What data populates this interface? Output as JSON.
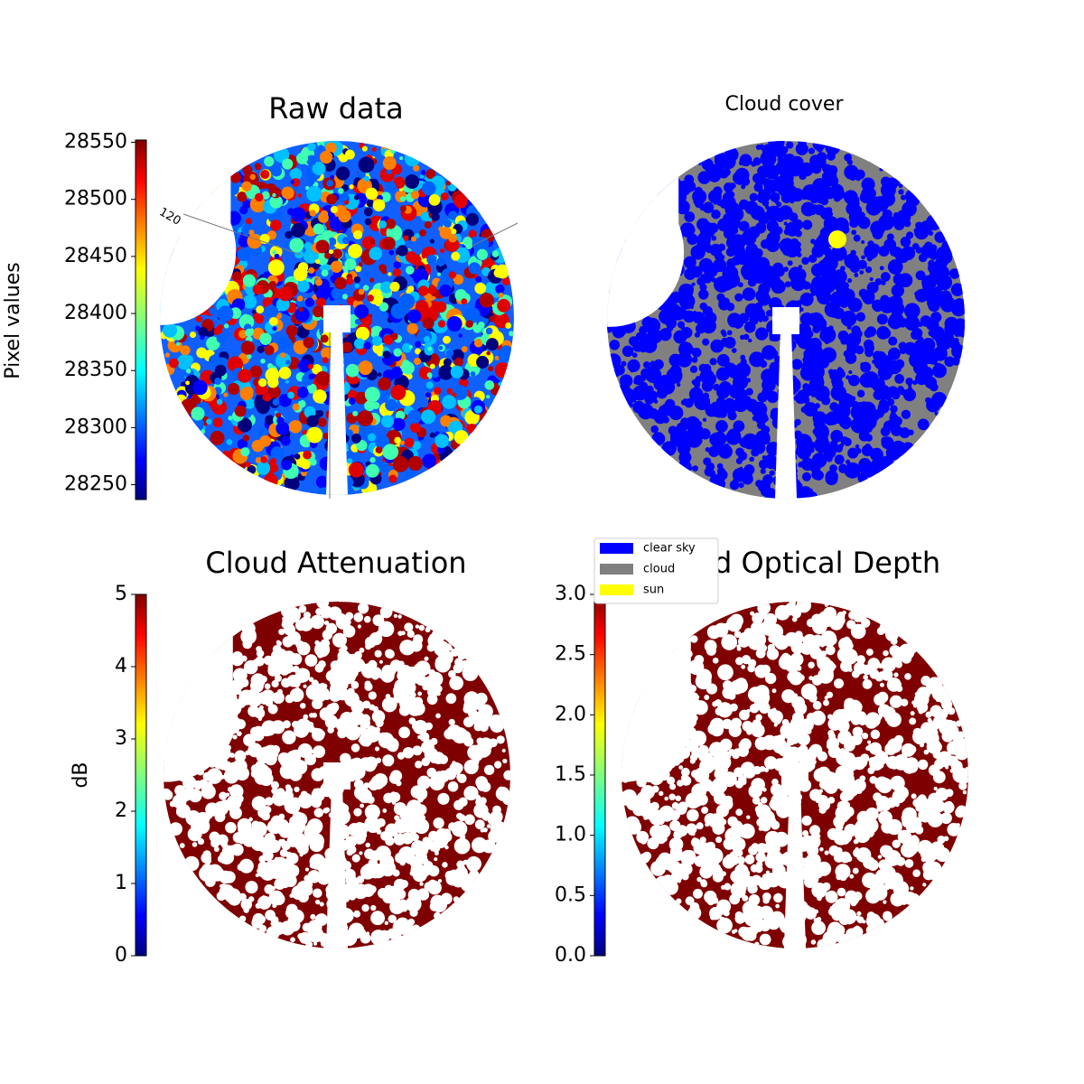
{
  "chart_data": [
    {
      "type": "image",
      "title": "Raw data",
      "colormap": "jet",
      "colorbar_label": "Pixel values",
      "ylim": [
        28237,
        28552
      ],
      "yticks": [
        28250,
        28300,
        28350,
        28400,
        28450,
        28500,
        28550
      ],
      "annotations": [
        "120"
      ]
    },
    {
      "type": "mask",
      "title": "Cloud cover",
      "series": [
        {
          "name": "clear sky",
          "color": "#0000ff"
        },
        {
          "name": "cloud",
          "color": "#808080"
        },
        {
          "name": "sun",
          "color": "#ffff00"
        }
      ]
    },
    {
      "type": "image",
      "title": "Cloud Attenuation",
      "colormap": "jet",
      "colorbar_label": "dB",
      "ylim": [
        0,
        5
      ],
      "yticks": [
        0,
        1,
        2,
        3,
        4,
        5
      ]
    },
    {
      "type": "image",
      "title": "Cloud Optical Depth",
      "colormap": "jet",
      "ylim": [
        0,
        3
      ],
      "yticks": [
        {
          "value": 0,
          "label": "0.0"
        },
        {
          "value": 0.5,
          "label": "0.5"
        },
        {
          "value": 1,
          "label": "1.0"
        },
        {
          "value": 1.5,
          "label": "1.5"
        },
        {
          "value": 2,
          "label": "2.0"
        },
        {
          "value": 2.5,
          "label": "2.5"
        },
        {
          "value": 3,
          "label": "3.0"
        }
      ]
    }
  ]
}
